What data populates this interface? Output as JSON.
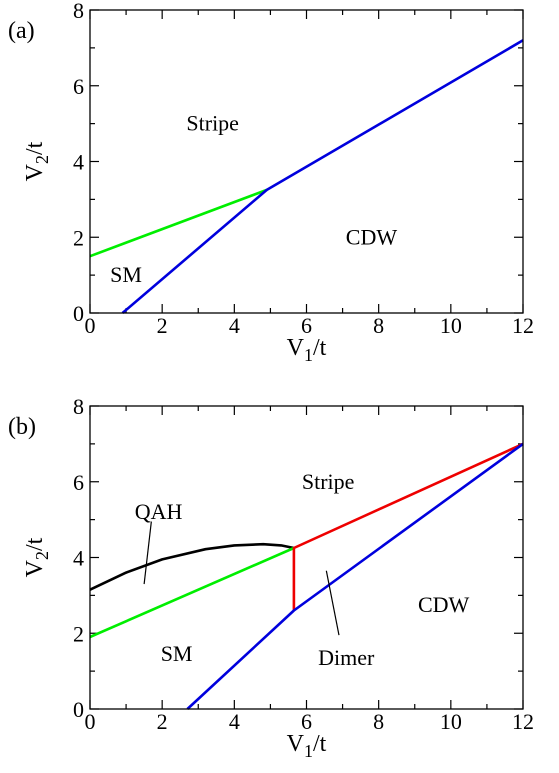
{
  "chart_data": [
    {
      "type": "line",
      "panel_label": "(a)",
      "xlabel": "V1/t",
      "xlabel_main": "V",
      "xlabel_sub": "1",
      "xlabel_rest": "/t",
      "ylabel": "V2/t",
      "ylabel_main": "V",
      "ylabel_sub": "2",
      "ylabel_rest": "/t",
      "xlim": [
        0,
        12
      ],
      "ylim": [
        0,
        8
      ],
      "xticks": [
        0,
        2,
        4,
        6,
        8,
        10,
        12
      ],
      "yticks": [
        0,
        2,
        4,
        6,
        8
      ],
      "series": [
        {
          "color": "#00ee00",
          "points": [
            [
              0,
              1.5
            ],
            [
              4.9,
              3.25
            ]
          ]
        },
        {
          "color": "#0000dd",
          "points": [
            [
              0.9,
              0
            ],
            [
              4.9,
              3.25
            ],
            [
              12,
              7.2
            ]
          ]
        }
      ],
      "regions": [
        {
          "text": "Stripe",
          "x": 3.4,
          "y": 5.0
        },
        {
          "text": "CDW",
          "x": 7.8,
          "y": 2.0
        },
        {
          "text": "SM",
          "x": 1.0,
          "y": 1.0
        }
      ]
    },
    {
      "type": "line",
      "panel_label": "(b)",
      "xlabel": "V1/t",
      "xlabel_main": "V",
      "xlabel_sub": "1",
      "xlabel_rest": "/t",
      "ylabel": "V2/t",
      "ylabel_main": "V",
      "ylabel_sub": "2",
      "ylabel_rest": "/t",
      "xlim": [
        0,
        12
      ],
      "ylim": [
        0,
        8
      ],
      "xticks": [
        0,
        2,
        4,
        6,
        8,
        10,
        12
      ],
      "yticks": [
        0,
        2,
        4,
        6,
        8
      ],
      "series": [
        {
          "color": "#000000",
          "points": [
            [
              0,
              3.15
            ],
            [
              1,
              3.6
            ],
            [
              2,
              3.95
            ],
            [
              3.2,
              4.22
            ],
            [
              4,
              4.32
            ],
            [
              4.8,
              4.35
            ],
            [
              5.3,
              4.32
            ],
            [
              5.65,
              4.25
            ]
          ]
        },
        {
          "color": "#00ee00",
          "points": [
            [
              0,
              1.9
            ],
            [
              5.65,
              4.25
            ]
          ]
        },
        {
          "color": "#ee0000",
          "points": [
            [
              5.65,
              2.6
            ],
            [
              5.65,
              4.25
            ],
            [
              12,
              7.0
            ]
          ]
        },
        {
          "color": "#0000dd",
          "points": [
            [
              2.7,
              0
            ],
            [
              5.65,
              2.6
            ],
            [
              12,
              7.0
            ]
          ]
        }
      ],
      "regions": [
        {
          "text": "Stripe",
          "x": 6.6,
          "y": 6.0
        },
        {
          "text": "QAH",
          "x": 1.9,
          "y": 5.2
        },
        {
          "text": "CDW",
          "x": 9.8,
          "y": 2.75
        },
        {
          "text": "SM",
          "x": 2.4,
          "y": 1.45
        },
        {
          "text": "Dimer",
          "x": 7.1,
          "y": 1.35
        }
      ],
      "annotations": [
        {
          "from": [
            1.7,
            4.95
          ],
          "to": [
            1.5,
            3.3
          ]
        },
        {
          "from": [
            6.9,
            1.95
          ],
          "to": [
            6.55,
            3.65
          ]
        }
      ]
    }
  ]
}
